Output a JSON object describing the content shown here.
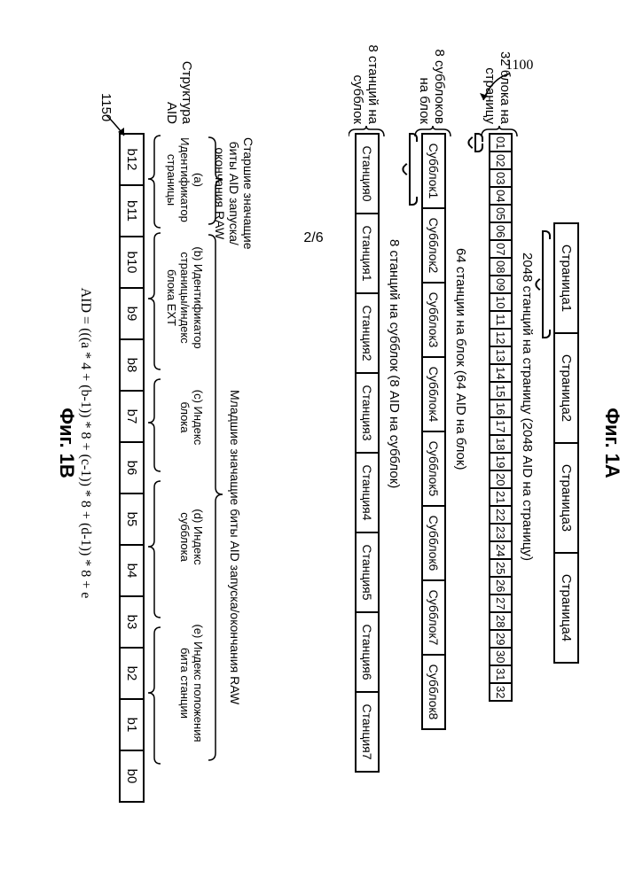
{
  "page_number": "2/6",
  "ref_1100": "1100",
  "ref_1150": "1150",
  "fig1a_label": "Фиг. 1A",
  "fig1b_label": "Фиг. 1B",
  "pages": [
    "Страница1",
    "Страница2",
    "Страница3",
    "Страница4"
  ],
  "pages_caption": "2048 станций на страницу (2048 AID на страницу)",
  "blocks": [
    "01",
    "02",
    "03",
    "04",
    "05",
    "06",
    "07",
    "08",
    "09",
    "10",
    "11",
    "12",
    "13",
    "14",
    "15",
    "16",
    "17",
    "18",
    "19",
    "20",
    "21",
    "22",
    "23",
    "24",
    "25",
    "26",
    "27",
    "28",
    "29",
    "30",
    "31",
    "32"
  ],
  "blocks_left": "32 блока на\nстраницу",
  "blocks_caption": "64 станции на блок (64 AID на блок)",
  "subblocks": [
    "Субблок1",
    "Субблок2",
    "Субблок3",
    "Субблок4",
    "Субблок5",
    "Субблок6",
    "Субблок7",
    "Субблок8"
  ],
  "subblocks_left": "8 субблоков\nна блок",
  "subblocks_caption": "8 станций на субблок (8 AID на субблок)",
  "stations": [
    "Станция0",
    "Станция1",
    "Станция2",
    "Станция3",
    "Станция4",
    "Станция5",
    "Станция6",
    "Станция7"
  ],
  "stations_left": "8 станций на\nсубблок",
  "fig1b": {
    "msb_label": "Старшие значащие\nбиты AID запуска/\nокончания RAW",
    "lsb_label": "Младшие значащие биты AID запуска/окончания RAW",
    "struct_label": "Структура\nAID",
    "group_a": "(a) Идентификатор\nстраницы",
    "group_b": "(b) Идентификатор\nстраницы/индекс\nблока EXT",
    "group_c": "(c) Индекс\nблока",
    "group_d": "(d) Индекс\nсубблока",
    "group_e": "(e) Индекс положения\nбита станции",
    "bits": [
      "b12",
      "b11",
      "b10",
      "b9",
      "b8",
      "b7",
      "b6",
      "b5",
      "b4",
      "b3",
      "b2",
      "b1",
      "b0"
    ],
    "formula": "AID = (((a * 4 + (b-1)) * 8 + (c-1)) * 8 + (d-1)) * 8 + e"
  }
}
